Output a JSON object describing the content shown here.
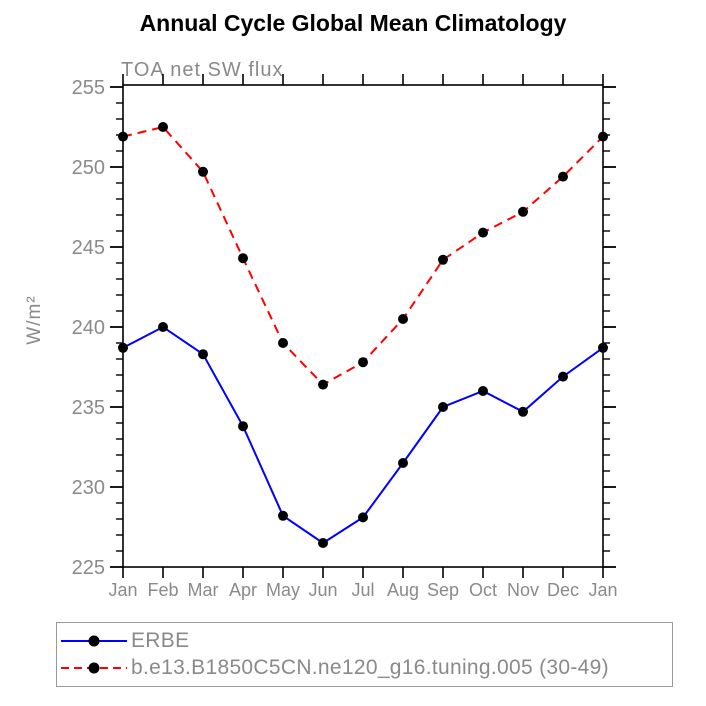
{
  "title": "Annual Cycle Global Mean Climatology",
  "colors": {
    "erbe_line": "#0000ff",
    "model_line": "#ff0000",
    "marker": "#000000",
    "axis": "#000000",
    "label_gray": "#8a8a8a"
  },
  "legend": {
    "entries": [
      {
        "label": "ERBE",
        "style": "solid"
      },
      {
        "label": "b.e13.B1850C5CN.ne120_g16.tuning.005 (30-49)",
        "style": "dashed"
      }
    ]
  },
  "chart_data": {
    "type": "line",
    "title": "Annual Cycle Global Mean Climatology",
    "subtitle": "TOA net SW flux",
    "ylabel": "W/m²",
    "categories": [
      "Jan",
      "Feb",
      "Mar",
      "Apr",
      "May",
      "Jun",
      "Jul",
      "Aug",
      "Sep",
      "Oct",
      "Nov",
      "Dec",
      "Jan"
    ],
    "series": [
      {
        "name": "ERBE",
        "color": "#0000ff",
        "line_style": "solid",
        "marker": "filled-circle",
        "values": [
          238.7,
          240.0,
          238.3,
          233.8,
          228.2,
          226.5,
          228.1,
          231.5,
          235.0,
          236.0,
          234.7,
          236.9,
          238.7
        ]
      },
      {
        "name": "b.e13.B1850C5CN.ne120_g16.tuning.005 (30-49)",
        "color": "#ff0000",
        "line_style": "dashed",
        "marker": "filled-circle",
        "values": [
          251.9,
          252.5,
          249.7,
          244.3,
          239.0,
          236.4,
          237.8,
          240.5,
          244.2,
          245.9,
          247.2,
          249.4,
          251.9
        ]
      }
    ],
    "ylim": [
      225,
      255
    ],
    "ytick_major_step": 5,
    "ytick_minor_step": 1,
    "grid": false,
    "legend_position": "bottom-left-box"
  }
}
